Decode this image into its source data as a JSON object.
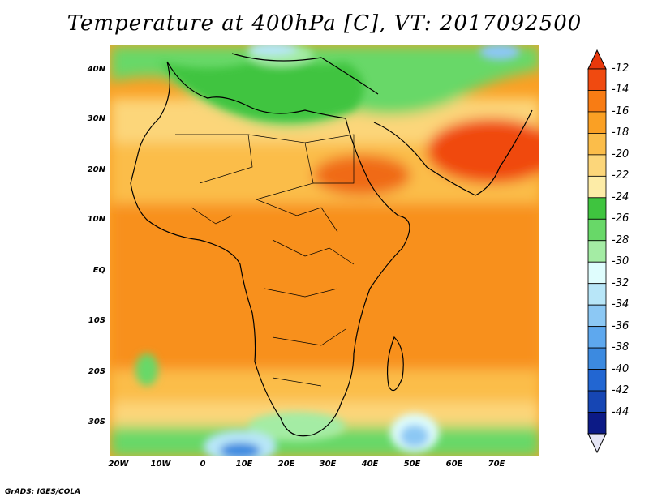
{
  "title": "Temperature at 400hPa [C], VT: 2017092500",
  "credit": "GrADS: IGES/COLA",
  "lat_labels": [
    "40N",
    "30N",
    "20N",
    "10N",
    "EQ",
    "10S",
    "20S",
    "30S"
  ],
  "lon_labels": [
    "20W",
    "10W",
    "0",
    "10E",
    "20E",
    "30E",
    "40E",
    "50E",
    "60E",
    "70E"
  ],
  "colorbar": {
    "labels": [
      "-12",
      "-14",
      "-16",
      "-18",
      "-20",
      "-22",
      "-24",
      "-26",
      "-28",
      "-30",
      "-32",
      "-34",
      "-36",
      "-38",
      "-40",
      "-42",
      "-44"
    ],
    "colors": [
      "#f04a10",
      "#f87c14",
      "#faa024",
      "#fbbd4a",
      "#fcd67a",
      "#fdeca7",
      "#3fc43f",
      "#68d868",
      "#a4eca4",
      "#dffdfd",
      "#b8e6f8",
      "#8cc8f4",
      "#5ea8ee",
      "#3c8ae0",
      "#2266d2",
      "#1646b4",
      "#0c1a86"
    ],
    "top_arrow_color": "#e8380c",
    "bottom_arrow_color": "#e6e6f6"
  }
}
